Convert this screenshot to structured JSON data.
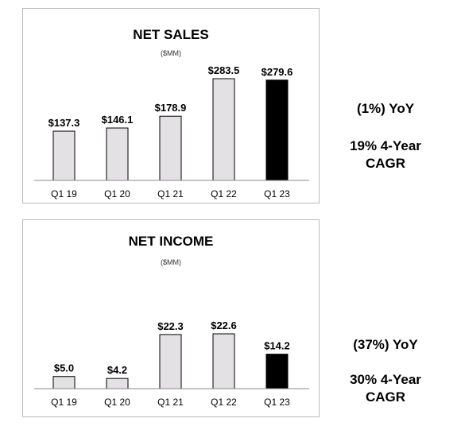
{
  "chart_data": [
    {
      "type": "bar",
      "title": "NET SALES",
      "subtitle": "($MM)",
      "categories": [
        "Q1 19",
        "Q1 20",
        "Q1 21",
        "Q1 22",
        "Q1 23"
      ],
      "values": [
        137.3,
        146.1,
        178.9,
        283.5,
        279.6
      ],
      "value_labels": [
        "$137.3",
        "$146.1",
        "$178.9",
        "$283.5",
        "$279.6"
      ],
      "bar_colors": [
        "#e3e1e3",
        "#e3e1e3",
        "#e3e1e3",
        "#e3e1e3",
        "#000000"
      ],
      "ylim": [
        0,
        283.5
      ],
      "grid": false,
      "legend": "none"
    },
    {
      "type": "bar",
      "title": "NET INCOME",
      "subtitle": "($MM)",
      "categories": [
        "Q1 19",
        "Q1 20",
        "Q1 21",
        "Q1 22",
        "Q1 23"
      ],
      "values": [
        5.0,
        4.2,
        22.3,
        22.6,
        14.2
      ],
      "value_labels": [
        "$5.0",
        "$4.2",
        "$22.3",
        "$22.6",
        "$14.2"
      ],
      "bar_colors": [
        "#e3e1e3",
        "#e3e1e3",
        "#e3e1e3",
        "#e3e1e3",
        "#000000"
      ],
      "ylim": [
        0,
        22.6
      ],
      "grid": false,
      "legend": "none"
    }
  ],
  "sales_side": {
    "yoy": "(1%) YoY",
    "cagr_line1": "19% 4-Year",
    "cagr_line2": "CAGR"
  },
  "income_side": {
    "yoy": "(37%) YoY",
    "cagr_line1": "30% 4-Year",
    "cagr_line2": "CAGR"
  }
}
